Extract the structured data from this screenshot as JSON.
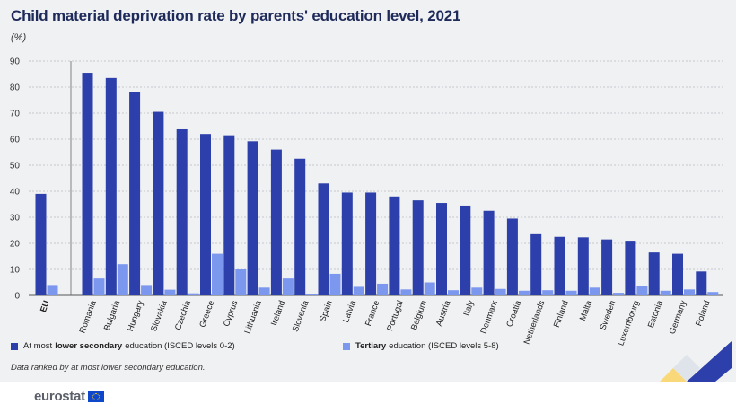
{
  "header": {
    "title": "Child material deprivation rate by parents' education level, 2021",
    "unit": "(%)"
  },
  "legend": {
    "low_prefix": "At most",
    "low_bold": "lower secondary",
    "low_suffix": "education (ISCED levels 0-2)",
    "high_bold": "Tertiary",
    "high_suffix": "education (ISCED levels 5-8)"
  },
  "note": "Data ranked by at most lower secondary education.",
  "footer": {
    "logo_text": "eurostat"
  },
  "colors": {
    "low": "#2c3faa",
    "high": "#7b97ee",
    "background": "#f0f1f3",
    "title": "#1e2a5a"
  },
  "chart_data": {
    "type": "bar",
    "title": "Child material deprivation rate by parents' education level, 2021",
    "ylabel": "(%)",
    "ylim": [
      0,
      90
    ],
    "yticks": [
      0,
      10,
      20,
      30,
      40,
      50,
      60,
      70,
      80,
      90
    ],
    "grid": true,
    "legend_position": "bottom",
    "categories": [
      "EU",
      "Romania",
      "Bulgaria",
      "Hungary",
      "Slovakia",
      "Czechia",
      "Greece",
      "Cyprus",
      "Lithuania",
      "Ireland",
      "Slovenia",
      "Spain",
      "Latvia",
      "France",
      "Portugal",
      "Belgium",
      "Austria",
      "Italy",
      "Denmark",
      "Croatia",
      "Netherlands",
      "Finland",
      "Malta",
      "Sweden",
      "Luxembourg",
      "Estonia",
      "Germany",
      "Poland"
    ],
    "series": [
      {
        "name": "At most lower secondary education (ISCED levels 0-2)",
        "color": "#2c3faa",
        "values": [
          39.0,
          85.5,
          83.5,
          78.0,
          70.5,
          63.8,
          62.0,
          61.5,
          59.2,
          56.0,
          52.5,
          43.0,
          39.5,
          39.5,
          38.0,
          36.5,
          35.5,
          34.5,
          32.5,
          29.5,
          23.5,
          22.5,
          22.3,
          21.5,
          21.0,
          16.5,
          16.0,
          9.2
        ]
      },
      {
        "name": "Tertiary education (ISCED levels 5-8)",
        "color": "#7b97ee",
        "values": [
          4.0,
          6.5,
          12.0,
          4.0,
          2.2,
          0.8,
          16.0,
          10.0,
          3.0,
          6.5,
          0.5,
          8.3,
          3.3,
          4.5,
          2.3,
          5.0,
          2.0,
          3.0,
          2.5,
          1.8,
          2.0,
          1.8,
          3.0,
          1.0,
          3.5,
          1.8,
          2.3,
          1.3
        ]
      }
    ]
  }
}
